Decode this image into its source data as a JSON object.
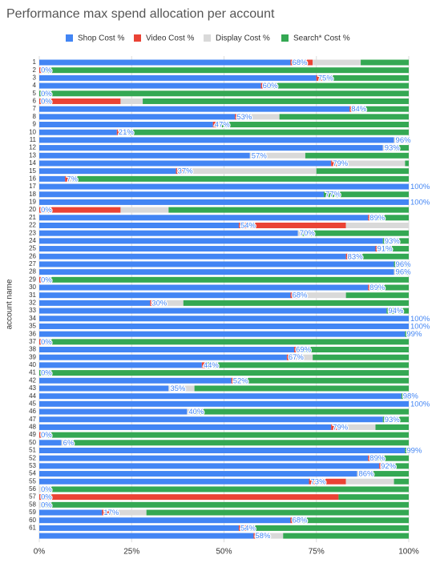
{
  "chart_data": {
    "type": "stacked-bar-horizontal",
    "title": "Performance max spend allocation per account",
    "y_label": "account name",
    "categories": [
      "1",
      "2",
      "3",
      "4",
      "5",
      "6",
      "7",
      "8",
      "9",
      "10",
      "11",
      "12",
      "13",
      "14",
      "15",
      "16",
      "17",
      "18",
      "19",
      "20",
      "21",
      "22",
      "23",
      "24",
      "25",
      "26",
      "27",
      "28",
      "29",
      "30",
      "31",
      "32",
      "33",
      "34",
      "35",
      "36",
      "37",
      "38",
      "39",
      "40",
      "41",
      "42",
      "43",
      "44",
      "45",
      "46",
      "47",
      "48",
      "49",
      "50",
      "51",
      "52",
      "53",
      "54",
      "55",
      "56",
      "57",
      "58",
      "59",
      "60",
      "61",
      null
    ],
    "series": [
      {
        "name": "Shop Cost %",
        "color": "#4285f4",
        "values": [
          68,
          0,
          75,
          60,
          0,
          0,
          84,
          53,
          47,
          21,
          96,
          93,
          57,
          79,
          37,
          7,
          100,
          77,
          100,
          0,
          89,
          54,
          70,
          93,
          91,
          83,
          96,
          96,
          0,
          89,
          68,
          30,
          94,
          100,
          100,
          99,
          0,
          69,
          67,
          44,
          0,
          52,
          35,
          98,
          100,
          40,
          93,
          79,
          0,
          6,
          99,
          89,
          92,
          86,
          73,
          0,
          0,
          0,
          17,
          68,
          54,
          58
        ],
        "value_labels": [
          "68%",
          "0%",
          "75%",
          "60%",
          "0%",
          "0%",
          "84%",
          "53%",
          "47%",
          "21%",
          "96%",
          "93%",
          "57%",
          "79%",
          "37%",
          "7%",
          "100%",
          "77%",
          "100%",
          "0%",
          "89%",
          "54%",
          "70%",
          "93%",
          "91%",
          "83%",
          "96%",
          "96%",
          "0%",
          "89%",
          "68%",
          "30%",
          "94%",
          "100%",
          "100%",
          "99%",
          "0%",
          "69%",
          "67%",
          "44%",
          "0%",
          "52%",
          "35%",
          "98%",
          "100%",
          "40%",
          "93%",
          "79%",
          "0%",
          "6%",
          "99%",
          "89%",
          "92%",
          "86%",
          "73%",
          "0%",
          "0%",
          "0%",
          "17%",
          "68%",
          "54%",
          "58%"
        ]
      },
      {
        "name": "Video Cost %",
        "color": "#ea4335",
        "values": [
          6,
          1,
          2,
          2,
          0,
          22,
          1,
          2,
          1,
          1,
          0,
          0,
          0,
          2,
          2,
          1,
          0,
          0,
          0,
          22,
          1,
          29,
          0,
          0,
          1,
          2,
          0,
          0,
          1,
          2,
          2,
          2,
          0,
          0,
          0,
          0,
          2,
          2,
          1,
          1,
          0,
          2,
          0,
          0,
          0,
          0,
          0,
          2,
          1,
          0,
          0,
          2,
          1,
          0,
          10,
          0,
          81,
          0,
          2,
          1,
          2,
          2
        ]
      },
      {
        "name": "Display Cost %",
        "color": "#d9d9d9",
        "values": [
          13,
          0,
          0,
          0,
          0,
          6,
          1,
          10,
          1,
          1,
          3,
          1,
          15,
          18,
          36,
          1,
          0,
          0,
          0,
          13,
          0,
          17,
          1,
          0,
          1,
          0,
          0,
          1,
          1,
          0,
          13,
          7,
          0,
          0,
          0,
          0,
          0,
          0,
          6,
          0,
          0,
          0,
          7,
          0,
          0,
          1,
          0,
          10,
          1,
          2,
          0,
          0,
          1,
          4,
          13,
          1,
          0,
          1,
          10,
          1,
          0,
          6
        ]
      },
      {
        "name": "Search* Cost %",
        "color": "#34a853",
        "values": [
          13,
          99,
          23,
          38,
          100,
          72,
          14,
          35,
          51,
          77,
          1,
          6,
          28,
          1,
          25,
          91,
          0,
          23,
          0,
          65,
          10,
          0,
          29,
          7,
          7,
          15,
          4,
          3,
          98,
          9,
          17,
          61,
          6,
          0,
          0,
          1,
          98,
          29,
          26,
          55,
          100,
          46,
          58,
          2,
          0,
          59,
          7,
          9,
          98,
          92,
          1,
          9,
          6,
          10,
          4,
          99,
          19,
          99,
          71,
          30,
          44,
          34
        ]
      }
    ],
    "xlim": [
      0,
      100
    ],
    "xticks": [
      {
        "value": 0,
        "label": "0%"
      },
      {
        "value": 25,
        "label": "25%"
      },
      {
        "value": 50,
        "label": "50%"
      },
      {
        "value": 75,
        "label": "75%"
      },
      {
        "value": 100,
        "label": "100%"
      }
    ],
    "grid": true,
    "legend": "top"
  }
}
